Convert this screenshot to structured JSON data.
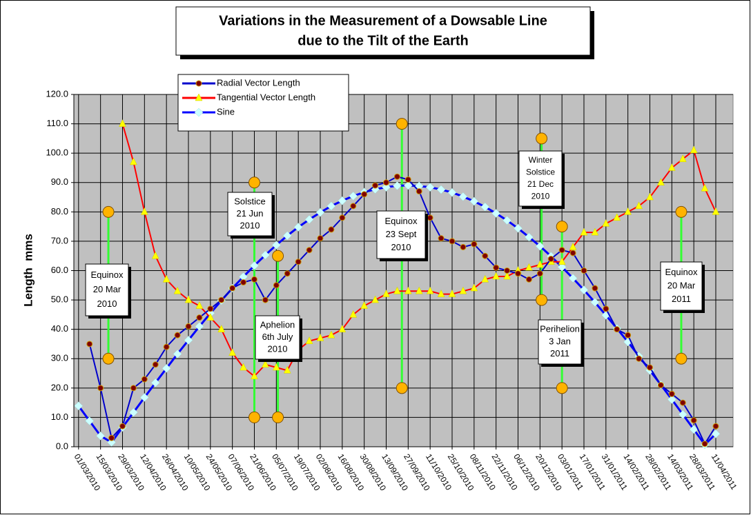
{
  "chart_data": {
    "type": "line",
    "title": [
      "Variations in the Measurement of a Dowsable Line",
      "due to the Tilt of the Earth"
    ],
    "y_label": "Length  mms",
    "xlim": [
      "26/02/2010",
      "22/04/2011"
    ],
    "xticks": [
      "01/03/2010",
      "15/03/2010",
      "29/03/2010",
      "12/04/2010",
      "26/04/2010",
      "10/05/2010",
      "24/05/2010",
      "07/06/2010",
      "21/06/2010",
      "05/07/2010",
      "19/07/2010",
      "02/08/2010",
      "16/08/2010",
      "30/08/2010",
      "13/09/2010",
      "27/09/2010",
      "11/10/2010",
      "25/10/2010",
      "08/11/2010",
      "22/11/2010",
      "06/12/2010",
      "20/12/2010",
      "03/01/2011",
      "17/01/2011",
      "31/01/2011",
      "14/02/2011",
      "28/02/2011",
      "14/03/2011",
      "28/03/2011",
      "11/04/2011"
    ],
    "ylim": [
      0,
      120
    ],
    "yticks": [
      {
        "value": 0,
        "label": "0.0"
      },
      {
        "value": 10,
        "label": "10.0"
      },
      {
        "value": 20,
        "label": "20.0"
      },
      {
        "value": 30,
        "label": "30.0"
      },
      {
        "value": 40,
        "label": "40.0"
      },
      {
        "value": 50,
        "label": "50.0"
      },
      {
        "value": 60,
        "label": "60.0"
      },
      {
        "value": 70,
        "label": "70.0"
      },
      {
        "value": 80,
        "label": "80.0"
      },
      {
        "value": 90,
        "label": "90.0"
      },
      {
        "value": 100,
        "label": "100.0"
      },
      {
        "value": 110,
        "label": "110.0"
      },
      {
        "value": 120,
        "label": "120.0"
      }
    ],
    "grid": true,
    "x": [
      "01/03/2010",
      "08/03/2010",
      "15/03/2010",
      "22/03/2010",
      "29/03/2010",
      "05/04/2010",
      "12/04/2010",
      "19/04/2010",
      "26/04/2010",
      "03/05/2010",
      "10/05/2010",
      "17/05/2010",
      "24/05/2010",
      "31/05/2010",
      "07/06/2010",
      "14/06/2010",
      "21/06/2010",
      "28/06/2010",
      "05/07/2010",
      "12/07/2010",
      "19/07/2010",
      "26/07/2010",
      "02/08/2010",
      "09/08/2010",
      "16/08/2010",
      "23/08/2010",
      "30/08/2010",
      "06/09/2010",
      "13/09/2010",
      "20/09/2010",
      "27/09/2010",
      "04/10/2010",
      "11/10/2010",
      "18/10/2010",
      "25/10/2010",
      "01/11/2010",
      "08/11/2010",
      "15/11/2010",
      "22/11/2010",
      "29/11/2010",
      "06/12/2010",
      "13/12/2010",
      "20/12/2010",
      "27/12/2010",
      "03/01/2011",
      "10/01/2011",
      "17/01/2011",
      "24/01/2011",
      "31/01/2011",
      "07/02/2011",
      "14/02/2011",
      "21/02/2011",
      "28/02/2011",
      "07/03/2011",
      "14/03/2011",
      "21/03/2011",
      "28/03/2011",
      "04/04/2011",
      "11/04/2011"
    ],
    "series": [
      {
        "name": "Radial Vector Length",
        "color": "#0000cc",
        "marker": "circle",
        "marker_color": "#800000",
        "values": [
          null,
          35,
          20,
          3,
          7,
          20,
          23,
          28,
          34,
          38,
          41,
          44,
          47,
          50,
          54,
          56,
          57,
          50,
          55,
          59,
          63,
          67,
          71,
          74,
          78,
          82,
          86,
          89,
          90,
          92,
          91,
          87,
          78,
          71,
          70,
          68,
          69,
          65,
          61,
          60,
          59,
          57,
          59,
          64,
          67,
          66,
          60,
          54,
          47,
          40,
          38,
          30,
          27,
          21,
          18,
          15,
          9,
          1,
          7
        ]
      },
      {
        "name": "Tangential Vector Length",
        "color": "#ff0000",
        "marker": "triangle",
        "marker_color": "#ffff00",
        "values": [
          null,
          null,
          null,
          null,
          110,
          97,
          80,
          65,
          57,
          53,
          50,
          48,
          44,
          40,
          32,
          27,
          24,
          28,
          27,
          26,
          33,
          36,
          37,
          38,
          40,
          45,
          48,
          50,
          52,
          53,
          53,
          53,
          53,
          52,
          52,
          53,
          54,
          57,
          58,
          58,
          60,
          61,
          62,
          63,
          63,
          68,
          73,
          73,
          76,
          78,
          80,
          82,
          85,
          90,
          95,
          98,
          101,
          88,
          80
        ]
      },
      {
        "name": "Sine",
        "color": "#0000ff",
        "marker": "diamond",
        "marker_color": "#ccffff",
        "values": [
          13.9,
          8.8,
          3.7,
          1.5,
          6.6,
          11.7,
          16.8,
          21.8,
          26.7,
          31.6,
          36.3,
          41.0,
          45.5,
          49.8,
          54.0,
          57.9,
          61.7,
          65.3,
          68.7,
          71.9,
          74.8,
          77.4,
          79.8,
          82.0,
          83.8,
          85.4,
          86.7,
          87.7,
          88.4,
          88.9,
          89.0,
          88.8,
          88.4,
          87.6,
          86.6,
          85.2,
          83.6,
          81.7,
          79.5,
          77.1,
          74.4,
          71.4,
          68.3,
          64.9,
          61.2,
          57.4,
          53.4,
          49.2,
          44.8,
          40.3,
          35.7,
          30.9,
          26.0,
          21.1,
          16.1,
          11.0,
          5.9,
          0.7,
          4.4
        ]
      }
    ],
    "events": [
      {
        "x": "20/03/2010",
        "low": 30,
        "high": 80,
        "label": [
          "Equinox",
          "20 Mar",
          "2010"
        ]
      },
      {
        "x": "21/06/2010",
        "low": 10,
        "high": 90,
        "label": [
          "Solstice",
          "21 Jun",
          "2010"
        ]
      },
      {
        "x": "06/07/2010",
        "low": 10,
        "high": 65,
        "label": [
          "Aphelion",
          "6th July",
          "2010"
        ]
      },
      {
        "x": "23/09/2010",
        "low": 20,
        "high": 110,
        "label": [
          "Equinox",
          "23 Sept",
          "2010"
        ]
      },
      {
        "x": "21/12/2010",
        "low": 50,
        "high": 105,
        "label": [
          "Winter",
          "Solstice",
          "21 Dec",
          "2010"
        ]
      },
      {
        "x": "03/01/2011",
        "low": 20,
        "high": 75,
        "label": [
          "Perihelion",
          "3 Jan",
          "2011"
        ]
      },
      {
        "x": "20/03/2011",
        "low": 30,
        "high": 80,
        "label": [
          "Equinox",
          "20 Mar",
          "2011"
        ]
      }
    ]
  }
}
